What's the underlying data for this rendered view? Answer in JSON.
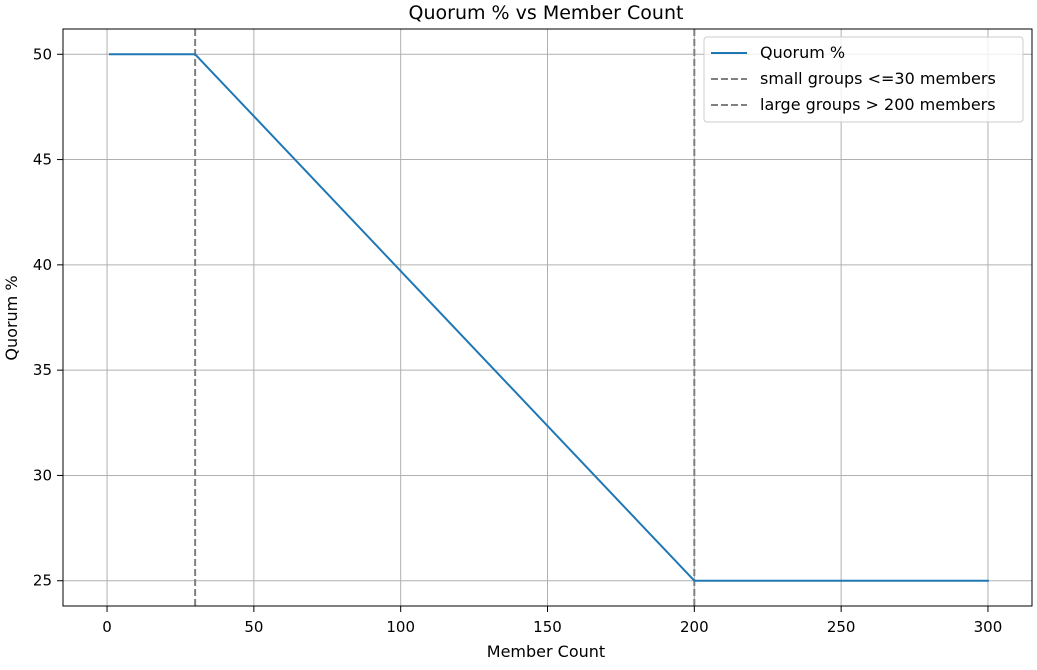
{
  "chart_data": {
    "type": "line",
    "title": "Quorum % vs Member Count",
    "xlabel": "Member Count",
    "ylabel": "Quorum %",
    "xlim": [
      -15,
      315
    ],
    "ylim": [
      23.8,
      51.2
    ],
    "xticks": [
      0,
      50,
      100,
      150,
      200,
      250,
      300
    ],
    "yticks": [
      25,
      30,
      35,
      40,
      45,
      50
    ],
    "xtick_labels": [
      "0",
      "50",
      "100",
      "150",
      "200",
      "250",
      "300"
    ],
    "ytick_labels": [
      "25",
      "30",
      "35",
      "40",
      "45",
      "50"
    ],
    "grid": true,
    "legend_position": "top-right",
    "series": [
      {
        "name": "Quorum %",
        "color": "#1f77b4",
        "style": "solid",
        "x": [
          1,
          30,
          200,
          300
        ],
        "y": [
          50,
          50,
          25,
          25
        ]
      }
    ],
    "reference_lines": [
      {
        "name": "small groups <=30 members",
        "orientation": "vertical",
        "x": 30,
        "color": "#808080",
        "style": "dashed"
      },
      {
        "name": "large groups > 200 members",
        "orientation": "vertical",
        "x": 200,
        "color": "#808080",
        "style": "dashed"
      }
    ]
  }
}
